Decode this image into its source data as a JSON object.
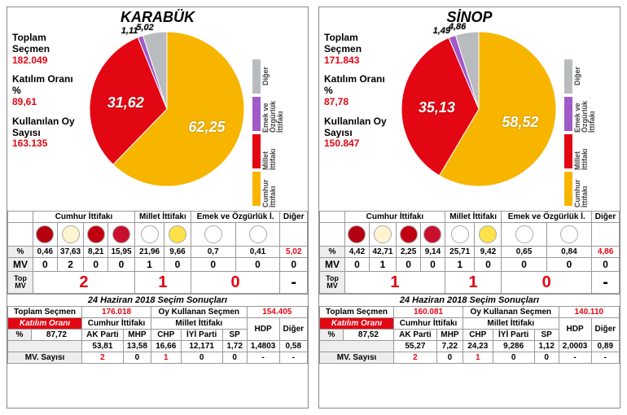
{
  "colors": {
    "cumhur": "#f7b500",
    "millet": "#e30613",
    "emek": "#a05bc8",
    "diger": "#b9bcbe",
    "red": "#e30613"
  },
  "legend": [
    {
      "key": "Diğer",
      "color": "#b9bcbe"
    },
    {
      "key": "Emek ve Özgürlük İttifakı",
      "color": "#a05bc8"
    },
    {
      "key": "Millet İttifakı",
      "color": "#e30613"
    },
    {
      "key": "Cumhur İttifakı",
      "color": "#f7b500"
    }
  ],
  "party_logos": [
    {
      "name": "bbp",
      "bg": "#b40010"
    },
    {
      "name": "akp",
      "bg": "#fff5d0"
    },
    {
      "name": "yrp",
      "bg": "#c00010"
    },
    {
      "name": "mhp",
      "bg": "#c8102e"
    },
    {
      "name": "chp",
      "bg": "#ffffff"
    },
    {
      "name": "iyi",
      "bg": "#ffe14a"
    },
    {
      "name": "yesil",
      "bg": "#ffffff"
    },
    {
      "name": "tip",
      "bg": "#ffffff"
    }
  ],
  "panels": [
    {
      "city": "KARABÜK",
      "stats": {
        "toplam_label": "Toplam Seçmen",
        "toplam_value": "182.049",
        "katilim_label": "Katılım Oranı %",
        "katilim_value": "89,61",
        "kullan_label": "Kullanılan Oy Sayısı",
        "kullan_value": "163.135"
      },
      "pie": {
        "slices": [
          {
            "alliance": "Cumhur İttifakı",
            "value": 62.25,
            "label": "62,25",
            "color": "#f7b500"
          },
          {
            "alliance": "Millet İttifakı",
            "value": 31.62,
            "label": "31,62",
            "color": "#e30613"
          },
          {
            "alliance": "Emek ve Özgürlük İ.",
            "value": 1.11,
            "label": "1,11",
            "color": "#a05bc8"
          },
          {
            "alliance": "Diğer",
            "value": 5.02,
            "label": "5,02",
            "color": "#b9bcbe"
          }
        ]
      },
      "alliances": [
        "Cumhur İttifakı",
        "Millet İttifakı",
        "Emek ve Özgürlük İ.",
        "Diğer"
      ],
      "alliance_span": [
        4,
        2,
        2,
        1
      ],
      "pct": [
        "0,46",
        "37,63",
        "8,21",
        "15,95",
        "21,96",
        "9,66",
        "0,7",
        "0,41",
        "5,02"
      ],
      "mv": [
        "0",
        "2",
        "0",
        "0",
        "1",
        "0",
        "0",
        "0",
        "0"
      ],
      "top_mv": [
        "2",
        "1",
        "0",
        "-"
      ],
      "top_mv_color": [
        "#e30613",
        "#e30613",
        "#e30613",
        "#000"
      ],
      "hist": {
        "title": "24 Haziran 2018 Seçim Sonuçları",
        "toplam_label": "Toplam Seçmen",
        "toplam_value": "176.018",
        "oykul_label": "Oy Kullanan Seçmen",
        "oykul_value": "154.405",
        "katilim_label": "Katılım Oranı",
        "alliances": [
          "Cumhur İttifakı",
          "Millet İttifakı",
          "HDP",
          "Diğer"
        ],
        "parties": [
          "AK Parti",
          "MHP",
          "CHP",
          "İYİ Parti",
          "SP"
        ],
        "katilim_pct": "87,72",
        "party_pct": [
          "53,81",
          "13,58",
          "16,66",
          "12,171",
          "1,72",
          "1,4803",
          "0,58"
        ],
        "mv": [
          "2",
          "0",
          "1",
          "0",
          "0",
          "-",
          "-"
        ],
        "mv_color": [
          "#e30613",
          "#000",
          "#e30613",
          "#000",
          "#000",
          "#000",
          "#000"
        ]
      }
    },
    {
      "city": "SİNOP",
      "stats": {
        "toplam_label": "Toplam Seçmen",
        "toplam_value": "171.843",
        "katilim_label": "Katılım Oranı %",
        "katilim_value": "87,78",
        "kullan_label": "Kullanılan Oy Sayısı",
        "kullan_value": "150.847"
      },
      "pie": {
        "slices": [
          {
            "alliance": "Cumhur İttifakı",
            "value": 58.52,
            "label": "58,52",
            "color": "#f7b500"
          },
          {
            "alliance": "Millet İttifakı",
            "value": 35.13,
            "label": "35,13",
            "color": "#e30613"
          },
          {
            "alliance": "Emek ve Özgürlük İ.",
            "value": 1.49,
            "label": "1,49",
            "color": "#a05bc8"
          },
          {
            "alliance": "Diğer",
            "value": 4.86,
            "label": "4,86",
            "color": "#b9bcbe"
          }
        ]
      },
      "alliances": [
        "Cumhur İttifakı",
        "Millet İttifakı",
        "Emek ve Özgürlük İ.",
        "Diğer"
      ],
      "alliance_span": [
        4,
        2,
        2,
        1
      ],
      "pct": [
        "4,42",
        "42,71",
        "2,25",
        "9,14",
        "25,71",
        "9,42",
        "0,65",
        "0,84",
        "4,86"
      ],
      "mv": [
        "0",
        "1",
        "0",
        "0",
        "1",
        "0",
        "0",
        "0",
        "0"
      ],
      "top_mv": [
        "1",
        "1",
        "0",
        "-"
      ],
      "top_mv_color": [
        "#e30613",
        "#e30613",
        "#e30613",
        "#000"
      ],
      "hist": {
        "title": "24 Haziran 2018 Seçim Sonuçları",
        "toplam_label": "Toplam Seçmen",
        "toplam_value": "160.081",
        "oykul_label": "Oy Kullanan Seçmen",
        "oykul_value": "140.110",
        "katilim_label": "Katılım Oranı",
        "alliances": [
          "Cumhur İttifakı",
          "Millet İttifakı",
          "HDP",
          "Diğer"
        ],
        "parties": [
          "AK Parti",
          "MHP",
          "CHP",
          "İYİ Parti",
          "SP"
        ],
        "katilim_pct": "87,52",
        "party_pct": [
          "55,27",
          "7,22",
          "24,23",
          "9,286",
          "1,12",
          "2,0003",
          "0,89"
        ],
        "mv": [
          "2",
          "0",
          "1",
          "0",
          "0",
          "-",
          "-"
        ],
        "mv_color": [
          "#e30613",
          "#000",
          "#e30613",
          "#000",
          "#000",
          "#000",
          "#000"
        ]
      }
    }
  ]
}
